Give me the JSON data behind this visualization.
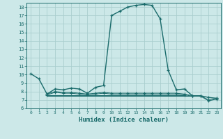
{
  "xlabel": "Humidex (Indice chaleur)",
  "bg_color": "#cce8e8",
  "grid_color": "#aacece",
  "line_color": "#1a6b6b",
  "xlim": [
    -0.5,
    23.5
  ],
  "ylim": [
    6,
    18.5
  ],
  "yticks": [
    6,
    7,
    8,
    9,
    10,
    11,
    12,
    13,
    14,
    15,
    16,
    17,
    18
  ],
  "xticks": [
    0,
    1,
    2,
    3,
    4,
    5,
    6,
    7,
    8,
    9,
    10,
    11,
    12,
    13,
    14,
    15,
    16,
    17,
    18,
    19,
    20,
    21,
    22,
    23
  ],
  "main_line_x": [
    0,
    1,
    2,
    3,
    4,
    5,
    6,
    7,
    8,
    9,
    10,
    11,
    12,
    13,
    14,
    15,
    16,
    17,
    18,
    19,
    20,
    21,
    22,
    23
  ],
  "main_line_y": [
    10.1,
    9.5,
    7.7,
    8.3,
    8.2,
    8.4,
    8.3,
    7.8,
    8.5,
    8.7,
    17.0,
    17.5,
    18.0,
    18.2,
    18.3,
    18.2,
    16.6,
    10.5,
    8.2,
    8.3,
    7.5,
    7.5,
    7.3,
    7.2
  ],
  "line2_x": [
    2,
    3,
    4,
    5,
    6,
    7,
    8,
    9,
    10,
    11,
    12,
    13,
    14,
    15,
    16,
    17,
    18,
    19,
    20,
    21,
    22,
    23
  ],
  "line2_y": [
    7.7,
    8.0,
    7.9,
    7.9,
    7.8,
    7.7,
    7.8,
    7.9,
    7.8,
    7.8,
    7.8,
    7.8,
    7.8,
    7.8,
    7.8,
    7.8,
    7.8,
    7.7,
    7.5,
    7.5,
    7.0,
    7.2
  ],
  "line3_x": [
    2,
    3,
    4,
    5,
    6,
    7,
    8,
    9,
    10,
    11,
    12,
    13,
    14,
    15,
    16,
    17,
    18,
    19,
    20,
    21,
    22,
    23
  ],
  "line3_y": [
    7.6,
    7.9,
    7.8,
    7.8,
    7.7,
    7.65,
    7.7,
    7.8,
    7.7,
    7.7,
    7.7,
    7.7,
    7.7,
    7.7,
    7.7,
    7.7,
    7.7,
    7.6,
    7.45,
    7.45,
    6.9,
    7.1
  ],
  "line4_x": [
    2,
    19
  ],
  "line4_y": [
    7.55,
    7.55
  ],
  "line5_x": [
    2,
    20
  ],
  "line5_y": [
    7.45,
    7.45
  ]
}
